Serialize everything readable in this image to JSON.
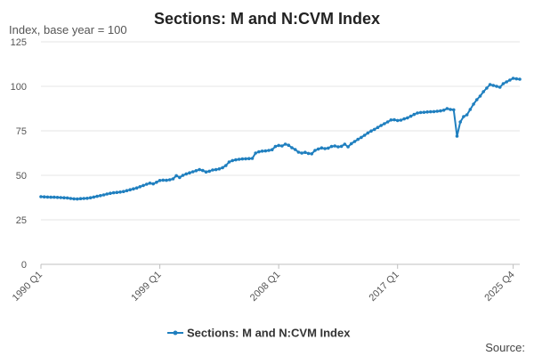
{
  "chart_data": {
    "type": "line",
    "title": "Sections: M and N:CVM Index",
    "ylabel": "Index, base year = 100",
    "ylim": [
      0,
      125
    ],
    "yticks": [
      0,
      25,
      50,
      75,
      100,
      125
    ],
    "x_start_year": 1990,
    "x_ticks": [
      {
        "label": "1990 Q1",
        "index": 0
      },
      {
        "label": "1999 Q1",
        "index": 36
      },
      {
        "label": "2008 Q1",
        "index": 72
      },
      {
        "label": "2017 Q1",
        "index": 108
      },
      {
        "label": "2025 Q4",
        "index": 143
      }
    ],
    "grid": true,
    "legend_position": "bottom",
    "series": [
      {
        "name": "Sections: M and N:CVM Index",
        "color": "#1f7fbf",
        "values": [
          38.0,
          37.9,
          37.8,
          37.7,
          37.7,
          37.6,
          37.5,
          37.4,
          37.3,
          37.0,
          36.8,
          36.7,
          36.9,
          37.0,
          37.1,
          37.4,
          37.8,
          38.2,
          38.6,
          39.0,
          39.5,
          39.9,
          40.2,
          40.4,
          40.6,
          40.9,
          41.4,
          41.9,
          42.4,
          42.9,
          43.6,
          44.3,
          45.0,
          45.6,
          45.2,
          46.1,
          47.1,
          47.3,
          47.2,
          47.5,
          48.0,
          49.8,
          48.8,
          50.0,
          50.8,
          51.4,
          52.0,
          52.6,
          53.2,
          52.7,
          51.9,
          52.3,
          53.0,
          53.2,
          53.6,
          54.3,
          55.5,
          57.5,
          58.3,
          58.7,
          59.0,
          59.2,
          59.3,
          59.4,
          59.5,
          62.5,
          63.2,
          63.6,
          63.7,
          64.0,
          64.4,
          66.2,
          66.8,
          66.5,
          67.5,
          66.9,
          65.5,
          64.5,
          63.0,
          62.5,
          62.9,
          62.3,
          62.1,
          64.0,
          64.8,
          65.4,
          65.0,
          65.3,
          66.2,
          66.5,
          66.0,
          66.3,
          67.5,
          66.0,
          67.8,
          69.0,
          70.2,
          71.3,
          72.5,
          73.8,
          74.9,
          75.8,
          76.9,
          78.0,
          79.0,
          80.0,
          81.1,
          81.2,
          80.8,
          81.0,
          81.7,
          82.3,
          83.2,
          84.2,
          85.0,
          85.3,
          85.4,
          85.6,
          85.7,
          85.8,
          86.0,
          86.2,
          86.6,
          87.5,
          87.0,
          86.8,
          72.0,
          80.0,
          83.0,
          84.0,
          87.0,
          90.0,
          92.5,
          94.5,
          97.0,
          99.0,
          101.0,
          100.5,
          100.0,
          99.5,
          101.5,
          102.5,
          103.5,
          104.5,
          104.2,
          104.0
        ]
      }
    ],
    "source_label": "Source:"
  }
}
